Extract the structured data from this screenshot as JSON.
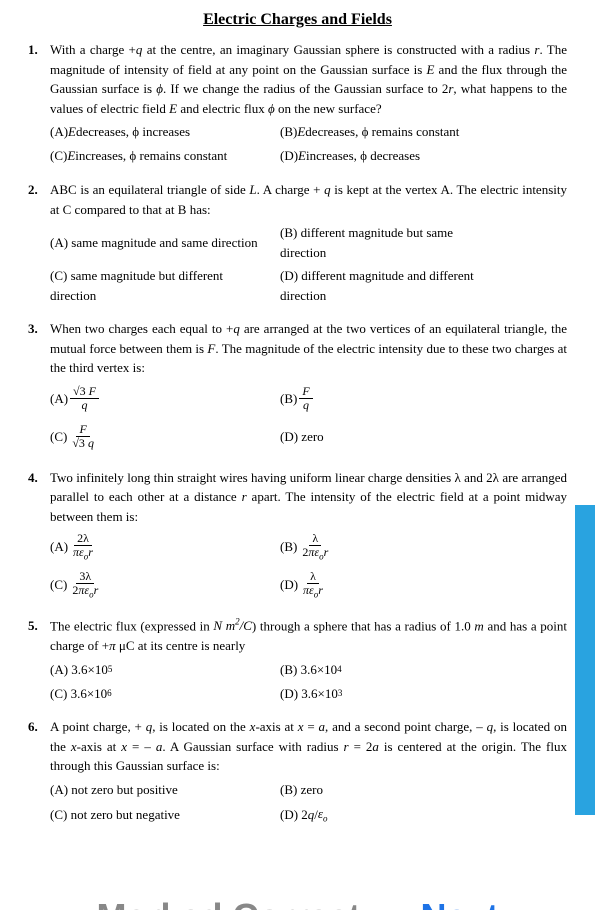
{
  "title": "Electric Charges and Fields",
  "questions": [
    {
      "num": "1.",
      "text": "With a charge +<i>q</i> at the centre, an imaginary Gaussian sphere is constructed with a radius <i>r</i>. The magnitude of intensity of field at any point on the Gaussian surface is <i>E</i> and the flux through the Gaussian surface is <i>ϕ</i>. If we change the radius of the Gaussian surface to 2<i>r</i>, what happens to the values of electric field <i>E</i> and electric flux <i>ϕ</i> on the new surface?",
      "options": [
        [
          "(A) <i>E</i> decreases, ϕ increases",
          "(B) <i>E</i> decreases, ϕ remains constant"
        ],
        [
          "(C) <i>E</i> increases, ϕ remains constant",
          "(D) <i>E</i> increases, ϕ decreases"
        ]
      ]
    },
    {
      "num": "2.",
      "text": "ABC is an equilateral triangle of side <i>L</i>. A charge + <i>q</i> is kept at the vertex A. The electric intensity at C compared to that at B has:",
      "options": [
        [
          "(A) same magnitude and same direction",
          "(B) different magnitude but same direction"
        ],
        [
          "(C) same magnitude but different direction",
          "(D) different magnitude and different direction"
        ]
      ]
    },
    {
      "num": "3.",
      "text": "When two charges each equal to +<i>q</i> are arranged at the two vertices of an equilateral triangle, the mutual force between them is <i>F</i>. The magnitude of the electric intensity due to these two charges at the third vertex is:",
      "options_frac": [
        [
          {
            "label": "(A)",
            "num": "√3 <i>F</i>",
            "den": "<i>q</i>"
          },
          {
            "label": "(B)",
            "num": "<i>F</i>",
            "den": "<i>q</i>"
          }
        ],
        [
          {
            "label": "(C)",
            "num": "<i>F</i>",
            "den": "√3 <i>q</i>"
          },
          {
            "label": "(D)",
            "plain": "zero"
          }
        ]
      ]
    },
    {
      "num": "4.",
      "text": "Two infinitely long thin straight wires having uniform linear charge densities λ and 2λ are arranged parallel to each other at a distance <i>r</i> apart. The intensity of the electric field at a point midway between them is:",
      "options_frac": [
        [
          {
            "label": "(A)",
            "num": "2λ",
            "den": "<i>πε<span class='sub'>o</span>r</i>"
          },
          {
            "label": "(B)",
            "num": "λ",
            "den": "2<i>πε<span class='sub'>o</span>r</i>"
          }
        ],
        [
          {
            "label": "(C)",
            "num": "3λ",
            "den": "2<i>πε<span class='sub'>o</span>r</i>"
          },
          {
            "label": "(D)",
            "num": "λ",
            "den": "<i>πε<span class='sub'>o</span>r</i>"
          }
        ]
      ]
    },
    {
      "num": "5.",
      "text": "The electric flux (expressed in <i>N m<span class='sup'>2</span>/C</i>) through a sphere that has a radius of 1.0 <i>m</i> and has a point charge of +<i>π</i> μC at its centre is nearly",
      "options": [
        [
          "(A) 3.6×10<span class='sup'>5</span>",
          "(B) 3.6×10<span class='sup'>4</span>"
        ],
        [
          "(C) 3.6×10<span class='sup'>6</span>",
          "(D) 3.6×10<span class='sup'>3</span>"
        ]
      ]
    },
    {
      "num": "6.",
      "text": "A point charge, + <i>q</i>, is located on the <i>x</i>-axis at <i>x</i> = <i>a</i>, and a second point charge, – <i>q</i>, is located on the <i>x</i>-axis at <i>x</i> = – <i>a</i>. A Gaussian surface with radius <i>r</i> = 2<i>a</i> is centered at the origin. The flux through this Gaussian surface is:",
      "options": [
        [
          "(A) not zero but positive",
          "(B) zero"
        ],
        [
          "(C) not zero but negative",
          "(D) 2<i>q</i> / <i>ε<span class='sub'>o</span></i>"
        ]
      ]
    }
  ],
  "footer": {
    "marked": "Marked Correct",
    "next": "Next"
  }
}
